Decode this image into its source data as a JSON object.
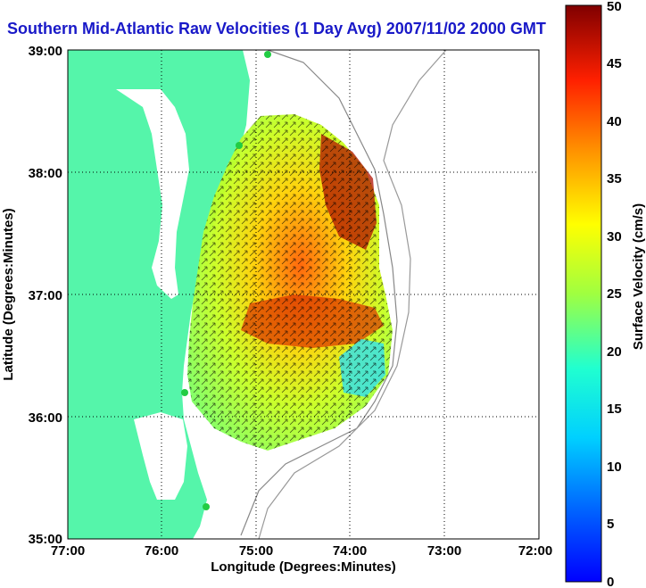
{
  "title": "Southern Mid-Atlantic Raw Velocities (1 Day Avg) 2007/11/02 2000 GMT",
  "map": {
    "xlabel": "Longitude (Degrees:Minutes)",
    "ylabel": "Latitude (Degrees:Minutes)",
    "lon_ticks": [
      "77:00",
      "76:00",
      "75:00",
      "74:00",
      "73:00",
      "72:00"
    ],
    "lat_ticks": [
      "39:00",
      "38:00",
      "37:00",
      "36:00",
      "35:00"
    ],
    "lon_range": [
      -77,
      -72
    ],
    "lat_range": [
      35,
      39
    ],
    "land_color": "#55f5aa",
    "grid": "dotted"
  },
  "colorbar": {
    "label": "Surface Velocity (cm/s)",
    "ticks": [
      "0",
      "5",
      "10",
      "15",
      "20",
      "25",
      "30",
      "35",
      "40",
      "45",
      "50"
    ],
    "range": [
      0,
      50
    ],
    "colormap": "jet"
  }
}
